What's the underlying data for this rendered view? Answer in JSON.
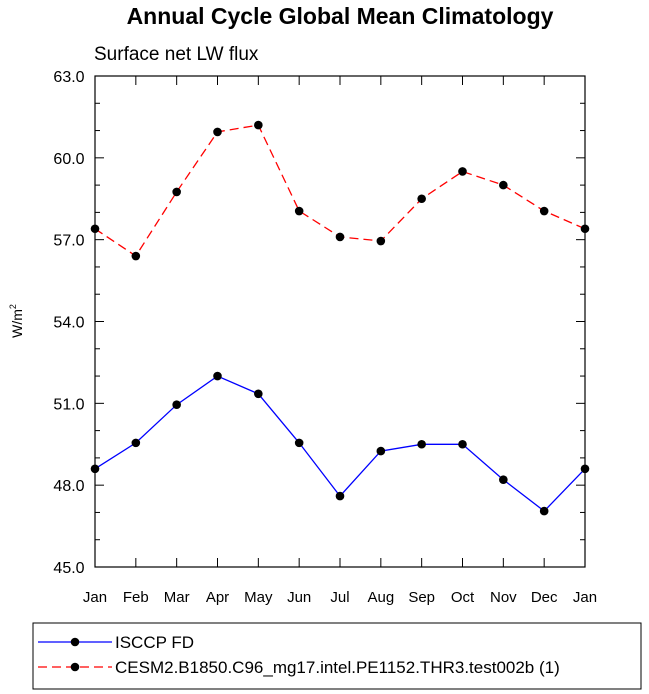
{
  "chart_data": {
    "type": "line",
    "title": "Annual Cycle Global Mean Climatology",
    "subtitle": "Surface net LW flux",
    "ylabel_base": "W/m",
    "ylabel_sup": "2",
    "xlabel": "",
    "categories": [
      "Jan",
      "Feb",
      "Mar",
      "Apr",
      "May",
      "Jun",
      "Jul",
      "Aug",
      "Sep",
      "Oct",
      "Nov",
      "Dec",
      "Jan"
    ],
    "ylim": [
      45.0,
      63.0
    ],
    "yticks": [
      "45.0",
      "48.0",
      "51.0",
      "54.0",
      "57.0",
      "60.0",
      "63.0"
    ],
    "grid": false,
    "legend_position": "bottom",
    "series": [
      {
        "name": "ISCCP FD",
        "color": "#0000ff",
        "dash": "solid",
        "values": [
          48.6,
          49.55,
          50.95,
          52.0,
          51.35,
          49.55,
          47.6,
          49.25,
          49.5,
          49.5,
          48.2,
          47.05,
          48.6
        ]
      },
      {
        "name": "CESM2.B1850.C96_mg17.intel.PE1152.THR3.test002b (1)",
        "color": "#ff0000",
        "dash": "dashed",
        "values": [
          57.4,
          56.4,
          58.75,
          60.95,
          61.2,
          58.05,
          57.1,
          56.95,
          58.5,
          59.5,
          59.0,
          58.05,
          57.4
        ]
      }
    ]
  }
}
